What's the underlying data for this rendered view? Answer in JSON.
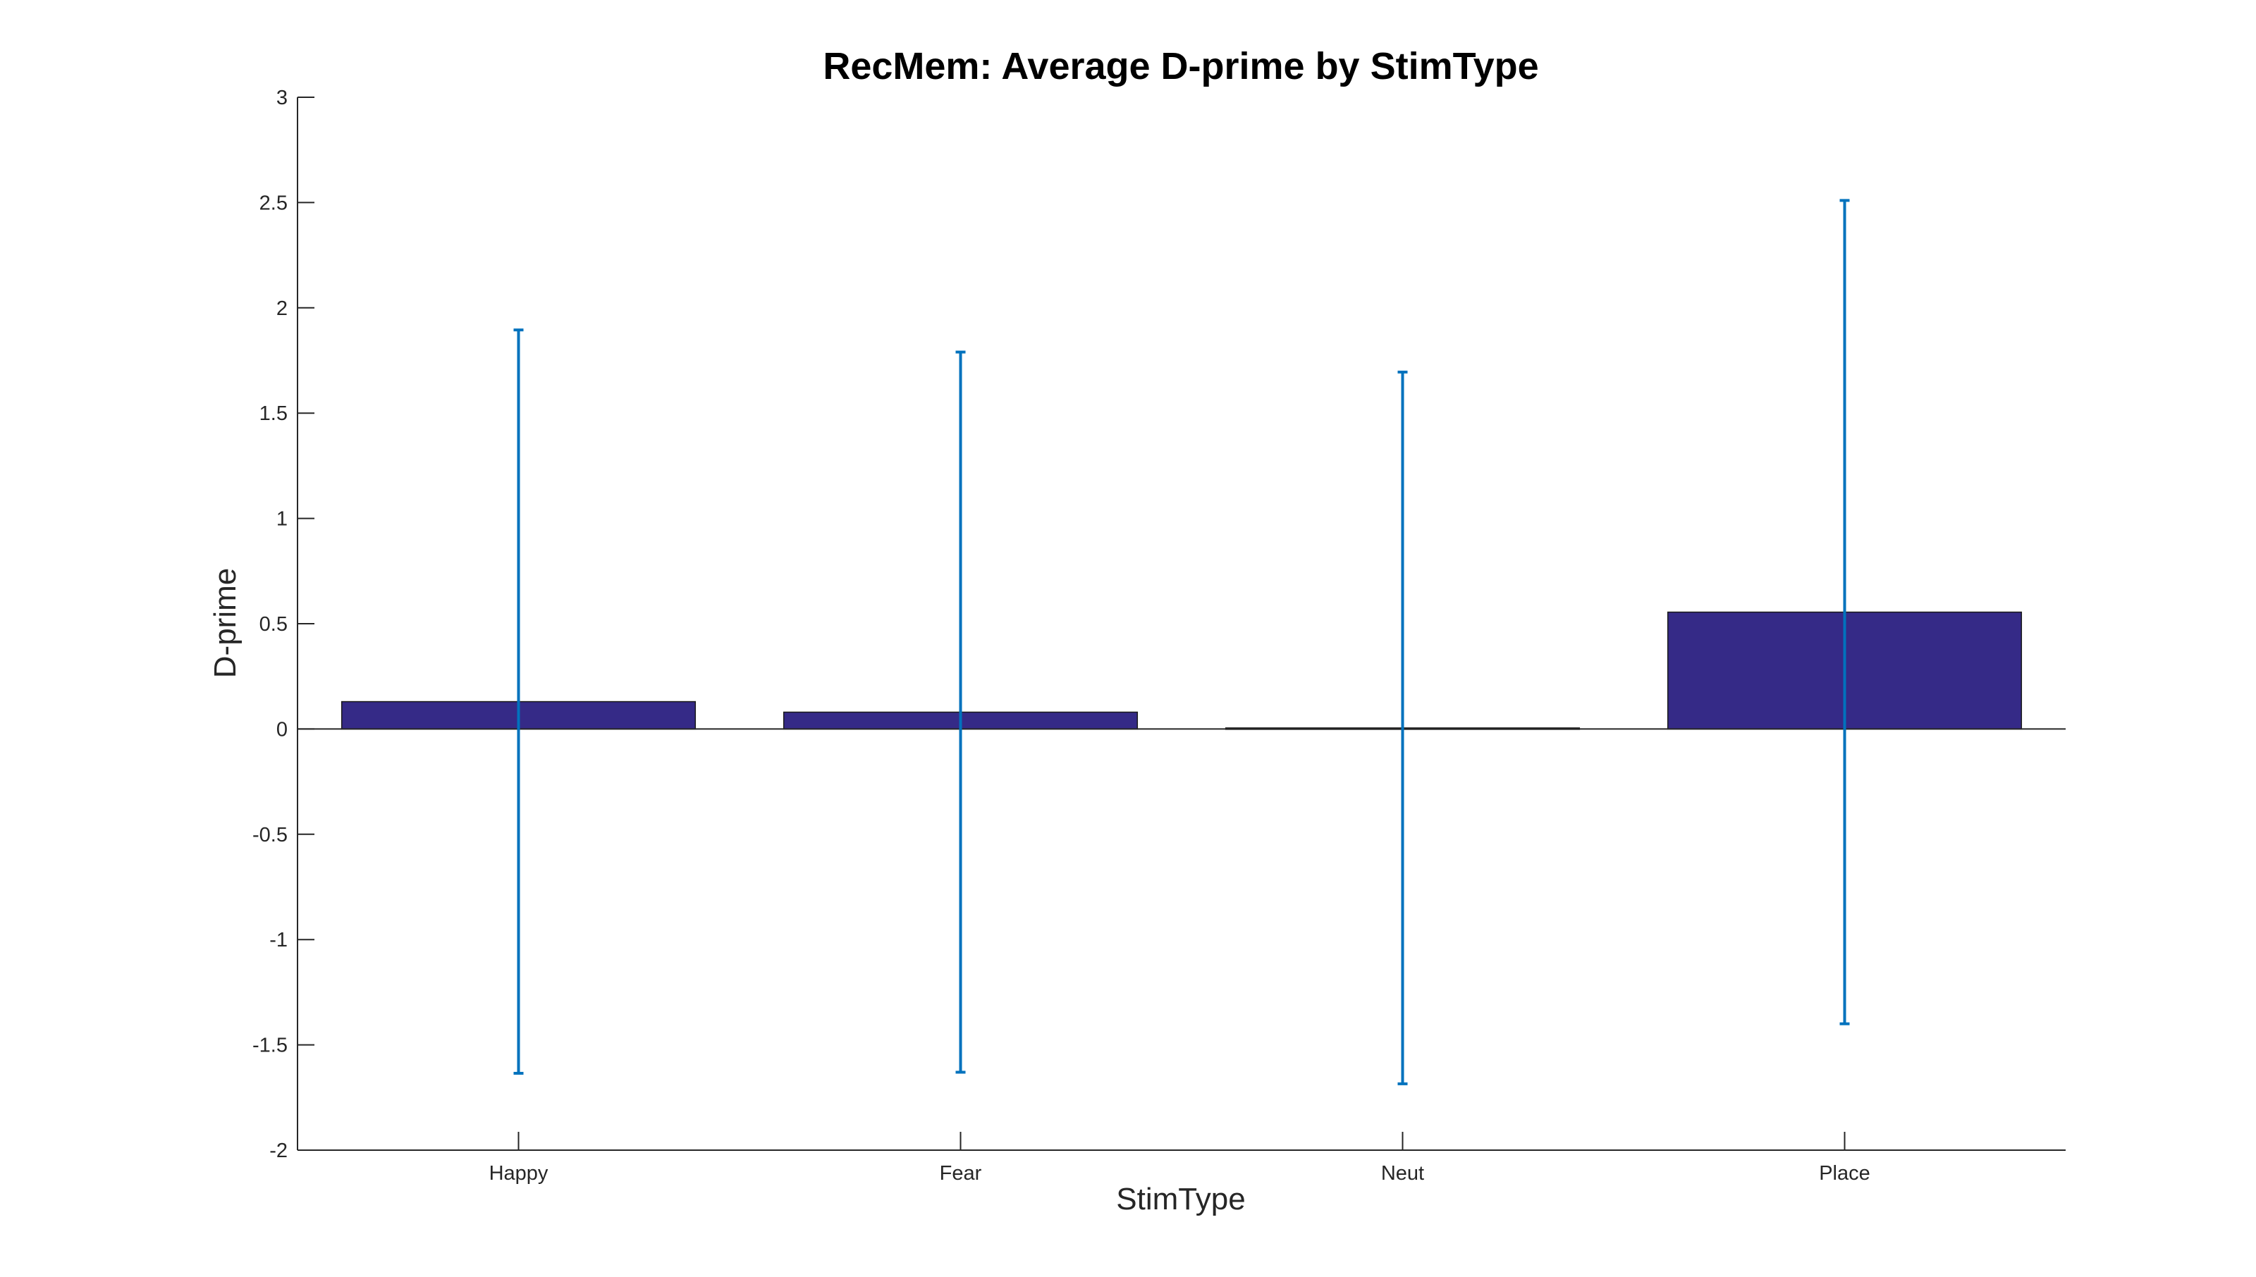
{
  "chart_data": {
    "type": "bar",
    "title": "RecMem: Average D-prime by StimType",
    "xlabel": "StimType",
    "ylabel": "D-prime",
    "categories": [
      "Happy",
      "Fear",
      "Neut",
      "Place"
    ],
    "values": [
      0.13,
      0.08,
      0.005,
      0.555
    ],
    "error_bars": {
      "upper": [
        1.895,
        1.79,
        1.695,
        2.51
      ],
      "lower": [
        -1.635,
        -1.63,
        -1.685,
        -1.4
      ]
    },
    "ylim": [
      -2,
      3
    ],
    "yticks": [
      "-2",
      "-1.5",
      "-1",
      "-0.5",
      "0",
      "0.5",
      "1",
      "1.5",
      "2",
      "2.5",
      "3"
    ],
    "ytick_values": [
      -2,
      -1.5,
      -1,
      -0.5,
      0,
      0.5,
      1,
      1.5,
      2,
      2.5,
      3
    ],
    "grid": false,
    "legend": "none",
    "colors": {
      "bar_fill": "#352a87",
      "bar_edge": "#1a1a1a",
      "error_bar": "#0072bd",
      "axis": "#262626",
      "baseline": "#262626"
    }
  }
}
